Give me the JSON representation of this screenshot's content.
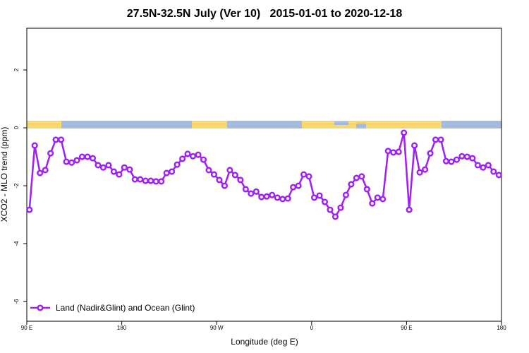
{
  "chart_data": {
    "type": "line",
    "title": "27.5N-32.5N July (Ver 10)   2015-01-01 to 2020-12-18",
    "xlabel": "Longitude (deg E)",
    "ylabel": "XCO2 - MLO trend (ppm)",
    "x": [
      92.5,
      97.5,
      102.5,
      107.5,
      112.5,
      117.5,
      122.5,
      127.5,
      132.5,
      137.5,
      142.5,
      147.5,
      152.5,
      157.5,
      162.5,
      167.5,
      172.5,
      177.5,
      182.5,
      187.5,
      192.5,
      197.5,
      202.5,
      207.5,
      212.5,
      217.5,
      222.5,
      227.5,
      232.5,
      237.5,
      242.5,
      247.5,
      252.5,
      257.5,
      262.5,
      267.5,
      272.5,
      277.5,
      282.5,
      287.5,
      292.5,
      297.5,
      302.5,
      307.5,
      312.5,
      317.5,
      322.5,
      327.5,
      332.5,
      337.5,
      342.5,
      347.5,
      352.5,
      357.5,
      362.5,
      367.5,
      372.5,
      377.5,
      382.5,
      387.5,
      392.5,
      397.5,
      402.5,
      407.5,
      412.5,
      417.5,
      422.5,
      427.5,
      432.5,
      437.5,
      442.5,
      447.5,
      452.5,
      457.5,
      462.5,
      467.5,
      472.5,
      477.5,
      482.5,
      487.5,
      492.5,
      497.5,
      502.5,
      507.5,
      512.5,
      517.5,
      522.5,
      527.5,
      532.5,
      537.5
    ],
    "series": [
      {
        "name": "Land (Nadir&Glint) and Ocean (Glint)",
        "color": "#a020f0",
        "values": [
          -2.83,
          -0.61,
          -1.56,
          -1.46,
          -0.88,
          -0.41,
          -0.41,
          -1.17,
          -1.2,
          -1.12,
          -1.0,
          -1.0,
          -1.05,
          -1.29,
          -1.37,
          -1.29,
          -1.51,
          -1.61,
          -1.37,
          -1.44,
          -1.78,
          -1.78,
          -1.83,
          -1.83,
          -1.85,
          -1.85,
          -1.56,
          -1.51,
          -1.27,
          -1.07,
          -0.9,
          -0.98,
          -0.93,
          -1.1,
          -1.46,
          -1.61,
          -1.8,
          -2.0,
          -1.46,
          -1.63,
          -1.8,
          -2.12,
          -2.27,
          -2.2,
          -2.39,
          -2.37,
          -2.32,
          -2.41,
          -2.46,
          -2.44,
          -2.05,
          -2.0,
          -1.61,
          -1.68,
          -2.41,
          -2.34,
          -2.56,
          -2.83,
          -3.07,
          -2.76,
          -2.32,
          -1.95,
          -1.73,
          -1.68,
          -2.12,
          -2.61,
          -2.41,
          -2.46,
          -0.8,
          -0.85,
          -0.83,
          -0.17,
          -2.83,
          -0.61,
          -1.54,
          -1.44,
          -0.88,
          -0.41,
          -0.41,
          -1.15,
          -1.17,
          -1.1,
          -0.98,
          -1.0,
          -1.05,
          -1.29,
          -1.37,
          -1.29,
          -1.51,
          -1.63
        ]
      }
    ],
    "xlim": [
      90,
      540
    ],
    "xticks": [
      {
        "value": 90,
        "label": "90 E"
      },
      180,
      {
        "value": 270,
        "label": "90 W"
      },
      {
        "value": 360,
        "label": "0"
      },
      {
        "value": 450,
        "label": "90 E"
      },
      {
        "value": 540,
        "label": "180"
      }
    ],
    "ylim": [
      -6.68,
      3.44
    ],
    "yticks": [
      -6,
      -4,
      -2,
      0,
      2
    ],
    "legend": "bottom-left"
  }
}
